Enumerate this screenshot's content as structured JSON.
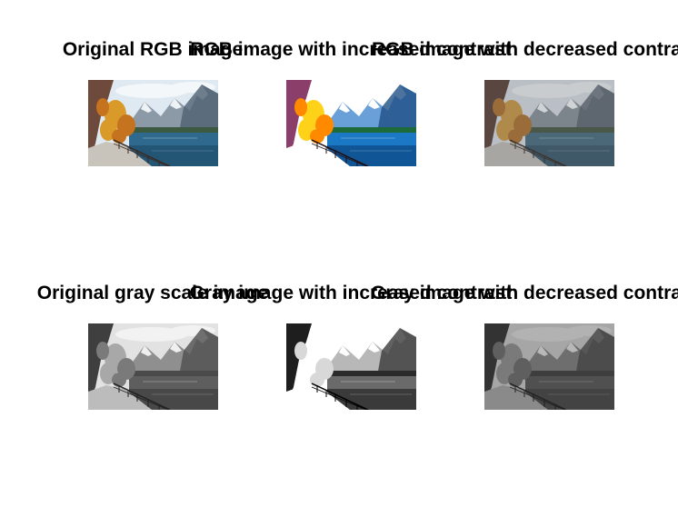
{
  "figure": {
    "panels": [
      {
        "id": "p1",
        "title": "Original RGB image",
        "tone": "color-original"
      },
      {
        "id": "p2",
        "title": "RGB image with increased contrast",
        "tone": "color-high"
      },
      {
        "id": "p3",
        "title": "RGB image with decreased contrast",
        "tone": "color-low"
      },
      {
        "id": "p4",
        "title": "Original gray scale image",
        "tone": "gray-original"
      },
      {
        "id": "p5",
        "title": "Gray image with increased contrast",
        "tone": "gray-high"
      },
      {
        "id": "p6",
        "title": "Gray image with decreased contrast",
        "tone": "gray-low"
      }
    ]
  },
  "palette": {
    "background": "#ffffff",
    "title_color": "#000000"
  }
}
